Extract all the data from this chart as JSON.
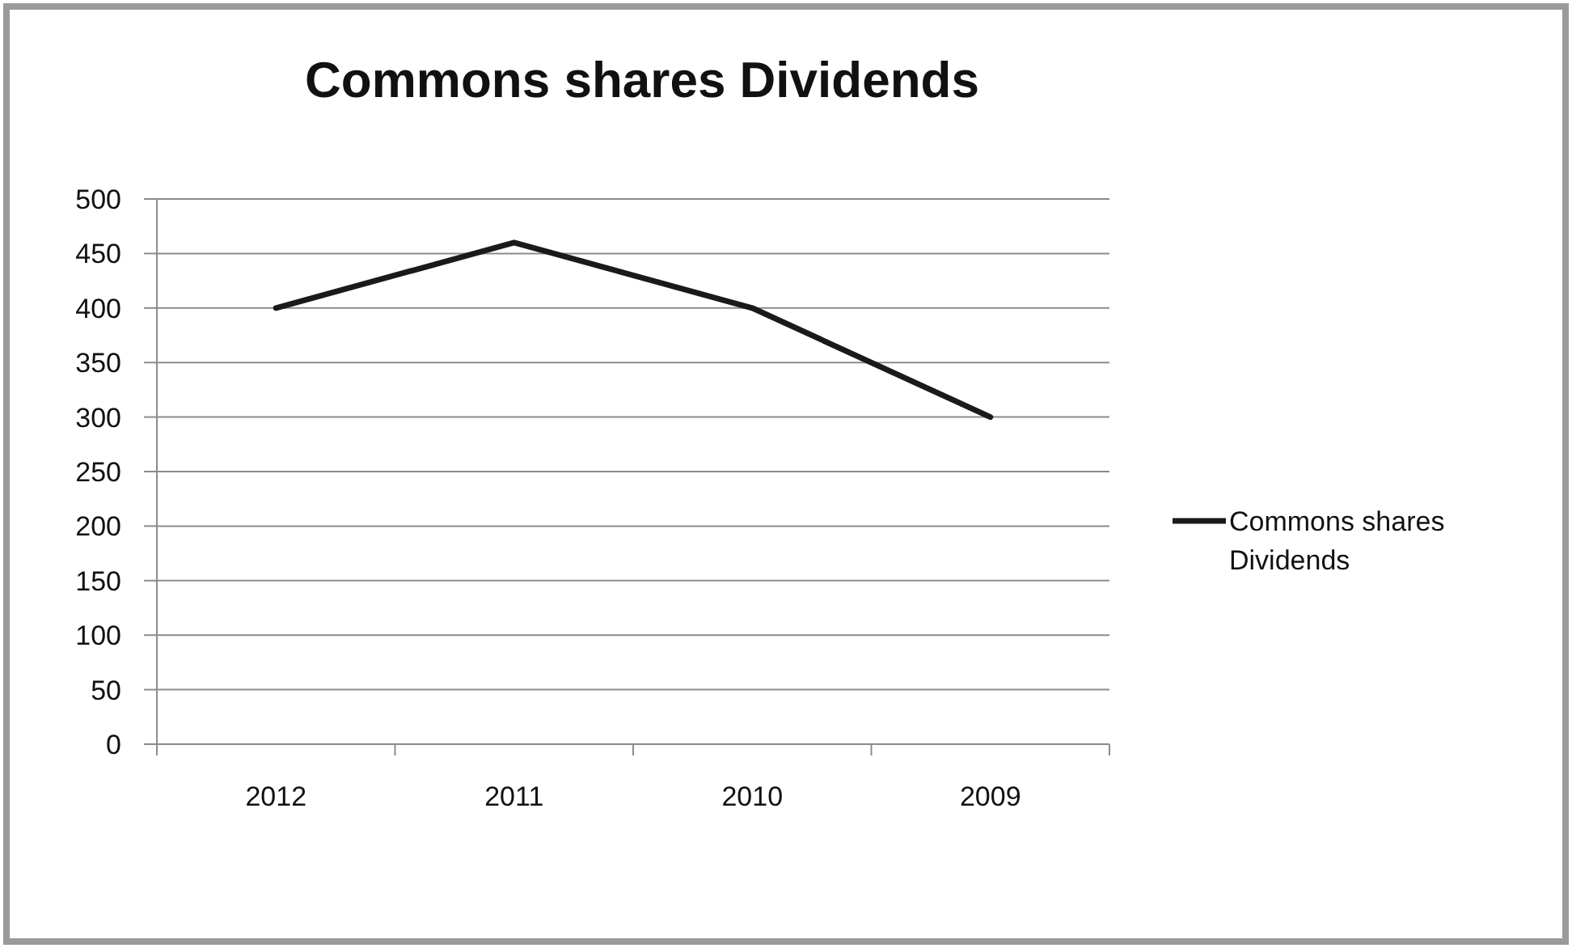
{
  "chart_data": {
    "type": "line",
    "title": "Commons shares Dividends",
    "categories": [
      "2012",
      "2011",
      "2010",
      "2009"
    ],
    "series": [
      {
        "name": "Commons shares Dividends",
        "color": "#1a1a1a",
        "values": [
          400,
          460,
          400,
          300
        ]
      }
    ],
    "ylim": [
      0,
      500
    ],
    "yticks": [
      0,
      50,
      100,
      150,
      200,
      250,
      300,
      350,
      400,
      450,
      500
    ],
    "grid": "y",
    "legend": "right",
    "marker": "none",
    "line_style": "solid"
  }
}
